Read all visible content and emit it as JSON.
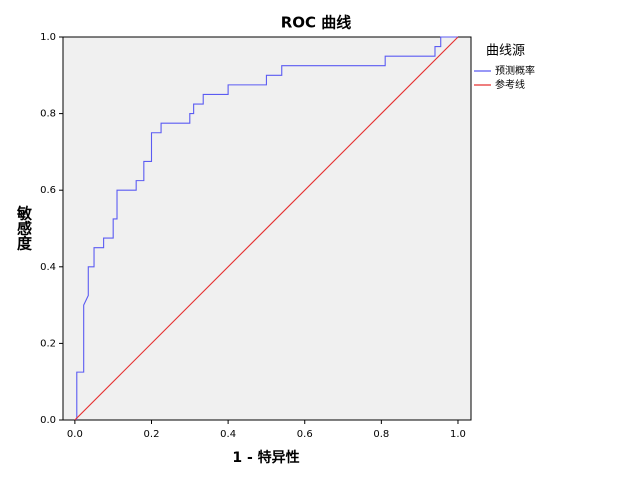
{
  "chart_data": {
    "type": "line",
    "title": "ROC 曲线",
    "x_label": "1 - 特异性",
    "y_label": "敏感度",
    "legend_title": "曲线源",
    "xlim": [
      -0.031,
      1.034
    ],
    "ylim": [
      0,
      1
    ],
    "xticks": [
      {
        "value": 0,
        "label": "0.0"
      },
      {
        "value": 0.2,
        "label": "0.2"
      },
      {
        "value": 0.4,
        "label": "0.4"
      },
      {
        "value": 0.6,
        "label": "0.6"
      },
      {
        "value": 0.8,
        "label": "0.8"
      },
      {
        "value": 1,
        "label": "1.0"
      }
    ],
    "yticks": [
      {
        "value": 0,
        "label": "0.0"
      },
      {
        "value": 0.2,
        "label": "0.2"
      },
      {
        "value": 0.4,
        "label": "0.4"
      },
      {
        "value": 0.6,
        "label": "0.6"
      },
      {
        "value": 0.8,
        "label": "0.8"
      },
      {
        "value": 1,
        "label": "1.0"
      }
    ],
    "legend": "right",
    "series": [
      {
        "name": "预测概率",
        "color": "#5b5bf2",
        "x": [
          0.005,
          0.005,
          0.023,
          0.023,
          0.035,
          0.035,
          0.05,
          0.05,
          0.075,
          0.075,
          0.1,
          0.1,
          0.11,
          0.11,
          0.16,
          0.16,
          0.18,
          0.18,
          0.2,
          0.2,
          0.225,
          0.225,
          0.3,
          0.3,
          0.31,
          0.31,
          0.335,
          0.335,
          0.4,
          0.4,
          0.5,
          0.5,
          0.54,
          0.54,
          0.81,
          0.81,
          0.94,
          0.94,
          0.955,
          0.955,
          1.0
        ],
        "values": [
          0,
          0.125,
          0.125,
          0.3,
          0.325,
          0.4,
          0.4,
          0.45,
          0.45,
          0.475,
          0.475,
          0.525,
          0.525,
          0.6,
          0.6,
          0.625,
          0.625,
          0.675,
          0.675,
          0.75,
          0.75,
          0.775,
          0.775,
          0.8,
          0.8,
          0.825,
          0.825,
          0.85,
          0.85,
          0.875,
          0.875,
          0.9,
          0.9,
          0.925,
          0.925,
          0.95,
          0.95,
          0.975,
          0.975,
          1.0,
          1.0
        ]
      },
      {
        "name": "参考线",
        "color": "#e53030",
        "x": [
          0,
          1
        ],
        "values": [
          0,
          1
        ]
      }
    ]
  }
}
